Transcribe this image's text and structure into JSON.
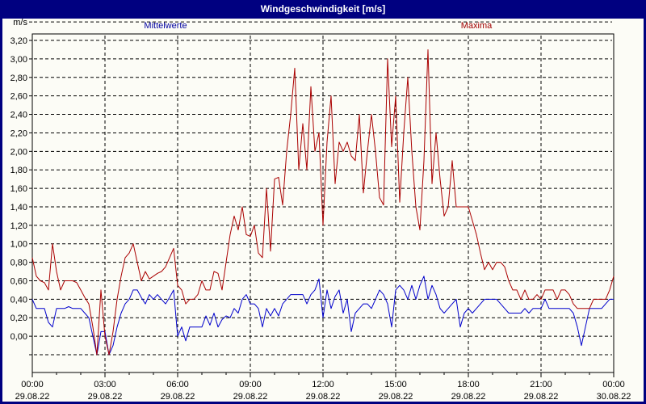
{
  "window": {
    "title": "Windgeschwindigkeit [m/s]"
  },
  "legend": {
    "mean_label": "Mittelwerte",
    "max_label": "Maxima"
  },
  "colors": {
    "titlebar_bg": "#000080",
    "window_border": "#000080",
    "background": "#fcfcf6",
    "grid": "#000000",
    "mean_line": "#0000cc",
    "max_line": "#aa0000",
    "mean_label": "#0000a0",
    "max_label": "#a00000"
  },
  "axes": {
    "y_unit_label": "m/s",
    "y_tick_labels": [
      "3,20",
      "3,00",
      "2,80",
      "2,60",
      "2,40",
      "2,20",
      "2,00",
      "1,80",
      "1,60",
      "1,40",
      "1,20",
      "1,00",
      "0,80",
      "0,60",
      "0,40",
      "0,20",
      "0,00"
    ],
    "x_ticks": [
      {
        "time": "00:00",
        "date": "29.08.22"
      },
      {
        "time": "03:00",
        "date": "29.08.22"
      },
      {
        "time": "06:00",
        "date": "29.08.22"
      },
      {
        "time": "09:00",
        "date": "29.08.22"
      },
      {
        "time": "12:00",
        "date": "29.08.22"
      },
      {
        "time": "15:00",
        "date": "29.08.22"
      },
      {
        "time": "18:00",
        "date": "29.08.22"
      },
      {
        "time": "21:00",
        "date": "29.08.22"
      },
      {
        "time": "00:00",
        "date": "30.08.22"
      }
    ]
  },
  "chart_data": {
    "type": "line",
    "title": "Windgeschwindigkeit [m/s]",
    "xlabel": "",
    "ylabel": "m/s",
    "x_start_hour": 0,
    "x_end_hour": 24,
    "interval_minutes": 10,
    "ylim": [
      0,
      3.4
    ],
    "y_step": 0.2,
    "x_major_step_hours": 3,
    "grid": true,
    "legend_position": "top",
    "series": [
      {
        "name": "Mittelwerte",
        "color": "#0000cc",
        "values": [
          0.6,
          0.5,
          0.5,
          0.5,
          0.35,
          0.3,
          0.5,
          0.5,
          0.5,
          0.52,
          0.5,
          0.5,
          0.5,
          0.45,
          0.4,
          0.2,
          0.0,
          0.25,
          0.25,
          0.0,
          0.1,
          0.3,
          0.45,
          0.55,
          0.6,
          0.7,
          0.7,
          0.62,
          0.55,
          0.65,
          0.6,
          0.65,
          0.6,
          0.55,
          0.62,
          0.7,
          0.2,
          0.3,
          0.15,
          0.3,
          0.3,
          0.3,
          0.3,
          0.42,
          0.32,
          0.45,
          0.3,
          0.38,
          0.42,
          0.4,
          0.5,
          0.45,
          0.6,
          0.65,
          0.55,
          0.55,
          0.5,
          0.3,
          0.5,
          0.42,
          0.5,
          0.42,
          0.55,
          0.6,
          0.65,
          0.65,
          0.65,
          0.65,
          0.55,
          0.65,
          0.7,
          0.82,
          0.4,
          0.7,
          0.5,
          0.63,
          0.7,
          0.45,
          0.6,
          0.25,
          0.45,
          0.5,
          0.55,
          0.55,
          0.5,
          0.6,
          0.7,
          0.65,
          0.55,
          0.3,
          0.7,
          0.75,
          0.7,
          0.6,
          0.75,
          0.6,
          0.75,
          0.85,
          0.6,
          0.75,
          0.65,
          0.5,
          0.45,
          0.5,
          0.55,
          0.6,
          0.3,
          0.45,
          0.5,
          0.45,
          0.5,
          0.55,
          0.6,
          0.6,
          0.6,
          0.6,
          0.55,
          0.5,
          0.45,
          0.45,
          0.45,
          0.45,
          0.5,
          0.45,
          0.5,
          0.5,
          0.5,
          0.6,
          0.5,
          0.5,
          0.5,
          0.5,
          0.5,
          0.5,
          0.45,
          0.3,
          0.1,
          0.3,
          0.5,
          0.5,
          0.5,
          0.5,
          0.55,
          0.6,
          0.6
        ]
      },
      {
        "name": "Maxima",
        "color": "#aa0000",
        "values": [
          1.05,
          0.85,
          0.8,
          0.78,
          0.7,
          1.2,
          0.9,
          0.7,
          0.8,
          0.8,
          0.8,
          0.78,
          0.7,
          0.62,
          0.55,
          0.3,
          0.0,
          0.7,
          0.2,
          0.0,
          0.25,
          0.6,
          0.85,
          1.05,
          1.1,
          1.2,
          1.0,
          0.8,
          0.9,
          0.82,
          0.85,
          0.88,
          0.9,
          0.95,
          1.05,
          1.15,
          0.75,
          0.7,
          0.55,
          0.6,
          0.6,
          0.65,
          0.8,
          0.7,
          0.7,
          0.9,
          0.88,
          0.7,
          1.0,
          1.3,
          1.5,
          1.35,
          1.6,
          1.3,
          1.28,
          1.4,
          1.1,
          1.05,
          1.8,
          1.12,
          1.9,
          1.92,
          1.62,
          2.2,
          2.6,
          3.1,
          2.0,
          2.5,
          2.0,
          2.9,
          2.2,
          2.4,
          1.4,
          2.3,
          2.8,
          1.85,
          2.3,
          2.2,
          2.3,
          2.15,
          2.1,
          2.6,
          1.75,
          2.2,
          2.6,
          2.2,
          1.7,
          1.62,
          3.2,
          2.25,
          2.8,
          1.65,
          2.4,
          3.0,
          2.2,
          1.6,
          1.35,
          2.1,
          3.3,
          1.85,
          2.4,
          1.9,
          1.5,
          1.6,
          2.1,
          1.6,
          1.6,
          1.6,
          1.6,
          1.45,
          1.3,
          1.1,
          0.92,
          1.0,
          0.92,
          1.0,
          1.0,
          0.95,
          0.8,
          0.7,
          0.7,
          0.6,
          0.7,
          0.6,
          0.6,
          0.65,
          0.6,
          0.7,
          0.7,
          0.7,
          0.6,
          0.7,
          0.7,
          0.65,
          0.55,
          0.5,
          0.5,
          0.5,
          0.5,
          0.6,
          0.6,
          0.6,
          0.6,
          0.7,
          0.85
        ]
      }
    ]
  }
}
